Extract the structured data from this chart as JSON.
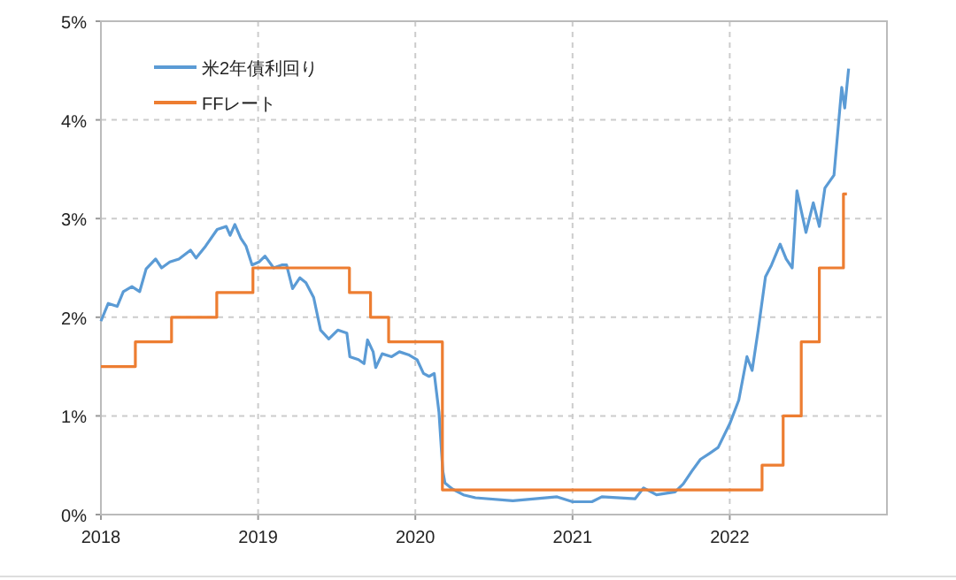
{
  "chart_data": {
    "type": "line",
    "xlim": [
      "2018",
      "2023"
    ],
    "xticks": [
      "2018",
      "2019",
      "2020",
      "2021",
      "2022"
    ],
    "ylim": [
      0,
      5
    ],
    "yticks": [
      {
        "value": 0,
        "label": "0%"
      },
      {
        "value": 1,
        "label": "1%"
      },
      {
        "value": 2,
        "label": "2%"
      },
      {
        "value": 3,
        "label": "3%"
      },
      {
        "value": 4,
        "label": "4%"
      },
      {
        "value": 5,
        "label": "5%"
      }
    ],
    "grid": true,
    "legend": "top left",
    "series": [
      {
        "name": "米2年債利回り",
        "color": "#5b9bd5",
        "x": [
          "2018-01-01",
          "2018-01-18",
          "2018-02-08",
          "2018-02-22",
          "2018-03-14",
          "2018-04-01",
          "2018-04-16",
          "2018-05-08",
          "2018-05-22",
          "2018-06-10",
          "2018-07-01",
          "2018-07-28",
          "2018-08-10",
          "2018-09-01",
          "2018-09-28",
          "2018-10-19",
          "2018-10-28",
          "2018-11-08",
          "2018-11-22",
          "2018-12-04",
          "2018-12-18",
          "2019-01-03",
          "2019-01-17",
          "2019-02-06",
          "2019-02-25",
          "2019-03-08",
          "2019-03-22",
          "2019-04-08",
          "2019-04-22",
          "2019-05-10",
          "2019-05-26",
          "2019-06-14",
          "2019-07-05",
          "2019-07-26",
          "2019-08-02",
          "2019-08-22",
          "2019-09-04",
          "2019-09-12",
          "2019-09-25",
          "2019-10-01",
          "2019-10-16",
          "2019-11-07",
          "2019-11-25",
          "2019-12-16",
          "2020-01-05",
          "2020-01-20",
          "2020-02-02",
          "2020-02-14",
          "2020-02-25",
          "2020-03-05",
          "2020-03-10",
          "2020-03-27",
          "2020-04-22",
          "2020-05-20",
          "2020-08-15",
          "2020-11-26",
          "2021-01-01",
          "2021-02-15",
          "2021-03-10",
          "2021-05-26",
          "2021-06-15",
          "2021-07-15",
          "2021-08-27",
          "2021-09-15",
          "2021-10-05",
          "2021-10-25",
          "2021-11-15",
          "2021-12-05",
          "2022-01-01",
          "2022-01-22",
          "2022-02-10",
          "2022-02-22",
          "2022-03-08",
          "2022-03-25",
          "2022-04-08",
          "2022-04-28",
          "2022-05-12",
          "2022-05-26",
          "2022-06-06",
          "2022-06-27",
          "2022-07-14",
          "2022-07-28",
          "2022-08-10",
          "2022-08-31",
          "2022-09-18",
          "2022-09-25",
          "2022-10-04"
        ],
        "values": [
          1.96,
          2.14,
          2.11,
          2.26,
          2.31,
          2.26,
          2.49,
          2.59,
          2.5,
          2.56,
          2.59,
          2.68,
          2.6,
          2.72,
          2.89,
          2.92,
          2.83,
          2.94,
          2.8,
          2.72,
          2.53,
          2.56,
          2.62,
          2.5,
          2.53,
          2.53,
          2.29,
          2.4,
          2.35,
          2.2,
          1.87,
          1.78,
          1.87,
          1.84,
          1.6,
          1.57,
          1.53,
          1.77,
          1.65,
          1.49,
          1.63,
          1.6,
          1.65,
          1.62,
          1.57,
          1.43,
          1.4,
          1.43,
          1.04,
          0.44,
          0.32,
          0.26,
          0.2,
          0.17,
          0.14,
          0.18,
          0.13,
          0.13,
          0.18,
          0.16,
          0.27,
          0.2,
          0.23,
          0.31,
          0.44,
          0.56,
          0.62,
          0.68,
          0.92,
          1.16,
          1.6,
          1.46,
          1.87,
          2.41,
          2.53,
          2.74,
          2.59,
          2.5,
          3.28,
          2.86,
          3.16,
          2.92,
          3.31,
          3.44,
          4.33,
          4.12,
          4.52
        ]
      },
      {
        "name": "FFレート",
        "color": "#ed7d31",
        "type": "step",
        "x": [
          "2018-01-01",
          "2018-03-22",
          "2018-06-14",
          "2018-09-27",
          "2018-12-20",
          "2019-08-01",
          "2019-09-19",
          "2019-10-31",
          "2020-03-04",
          "2022-03-17",
          "2022-05-05",
          "2022-06-16",
          "2022-07-28",
          "2022-09-22",
          "2022-09-30"
        ],
        "values": [
          1.5,
          1.75,
          2.0,
          2.25,
          2.5,
          2.25,
          2.0,
          1.75,
          0.25,
          0.5,
          1.0,
          1.75,
          2.5,
          3.25,
          3.25
        ]
      }
    ]
  }
}
